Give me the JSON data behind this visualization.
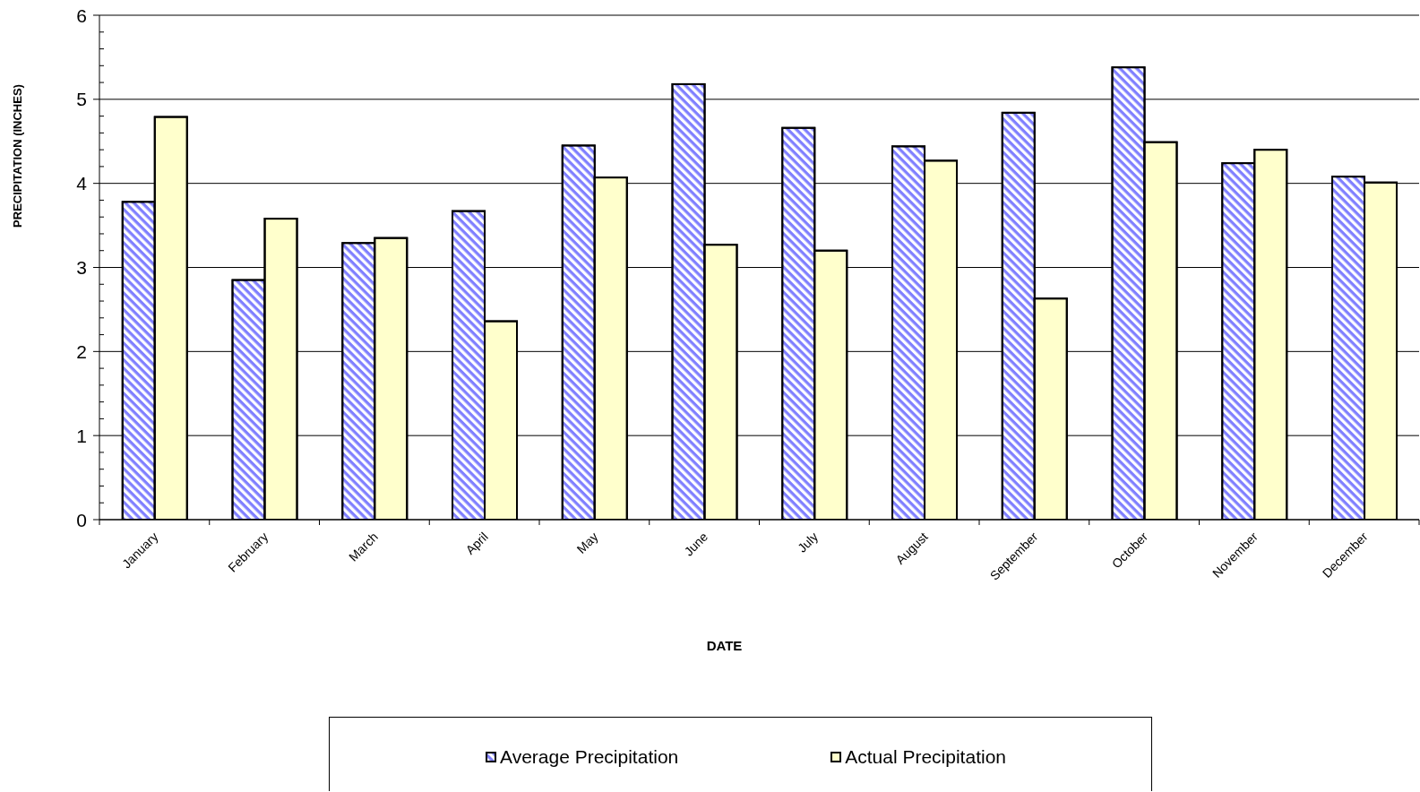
{
  "chart_data": {
    "type": "bar",
    "xlabel": "DATE",
    "ylabel": "PRECIPITATION (INCHES)",
    "categories": [
      "January",
      "February",
      "March",
      "April",
      "May",
      "June",
      "July",
      "August",
      "September",
      "October",
      "November",
      "December"
    ],
    "series": [
      {
        "name": "Average Precipitation",
        "color": "#8080ff",
        "values": [
          3.78,
          2.85,
          3.29,
          3.67,
          4.45,
          5.18,
          4.66,
          4.44,
          4.84,
          5.38,
          4.24,
          4.08
        ]
      },
      {
        "name": "Actual Precipitation",
        "color": "#ffffcc",
        "values": [
          4.79,
          3.58,
          3.35,
          2.36,
          4.07,
          3.27,
          3.2,
          4.27,
          2.63,
          4.49,
          4.4,
          4.01
        ]
      }
    ],
    "ylim": [
      0,
      6
    ],
    "yticks": [
      0,
      {
        "value": 0.2,
        "label": null
      },
      {
        "value": 0.4,
        "label": null
      },
      {
        "value": 0.6,
        "label": null
      },
      {
        "value": 0.8,
        "label": null
      },
      1,
      {
        "value": 1.2,
        "label": null
      },
      {
        "value": 1.4,
        "label": null
      },
      {
        "value": 1.6,
        "label": null
      },
      {
        "value": 1.8,
        "label": null
      },
      2,
      {
        "value": 2.2,
        "label": null
      },
      {
        "value": 2.4,
        "label": null
      },
      {
        "value": 2.6,
        "label": null
      },
      {
        "value": 2.8,
        "label": null
      },
      3,
      {
        "value": 3.2,
        "label": null
      },
      {
        "value": 3.4,
        "label": null
      },
      {
        "value": 3.6,
        "label": null
      },
      {
        "value": 3.8,
        "label": null
      },
      4,
      {
        "value": 4.2,
        "label": null
      },
      {
        "value": 4.4,
        "label": null
      },
      {
        "value": 4.6,
        "label": null
      },
      {
        "value": 4.8,
        "label": null
      },
      5,
      {
        "value": 5.2,
        "label": null
      },
      {
        "value": 5.4,
        "label": null
      },
      {
        "value": 5.6,
        "label": null
      },
      {
        "value": 5.8,
        "label": null
      },
      6
    ],
    "grid": "y",
    "legend": "bottom"
  }
}
